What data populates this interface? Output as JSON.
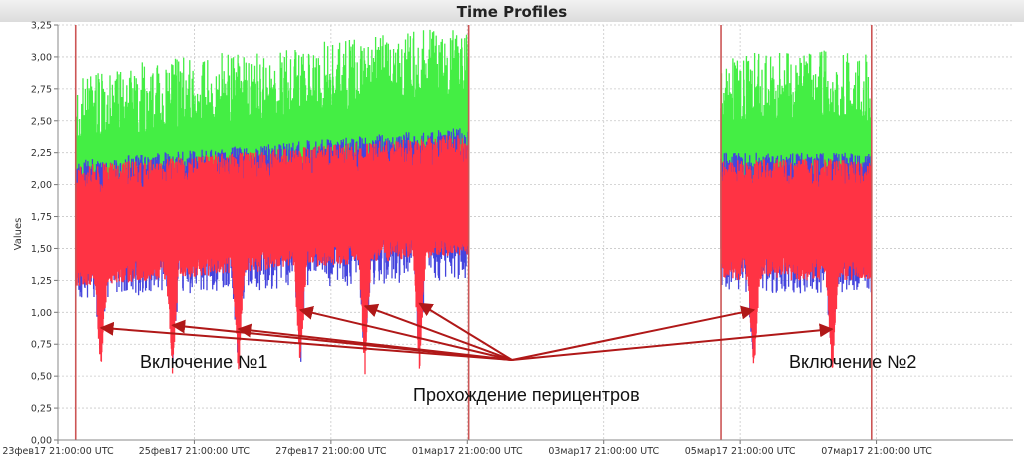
{
  "header": {
    "title": "Time Profiles"
  },
  "chart_data": {
    "type": "line",
    "title": "Time Profiles",
    "xlabel": "",
    "ylabel": "Values",
    "ylim": [
      0,
      3.25
    ],
    "y_ticks": [
      "0,00",
      "0,25",
      "0,50",
      "0,75",
      "1,00",
      "1,25",
      "1,50",
      "1,75",
      "2,00",
      "2,25",
      "2,50",
      "2,75",
      "3,00",
      "3,25"
    ],
    "x_ticks": [
      "23фев17 21:00:00 UTC",
      "25фев17 21:00:00 UTC",
      "27фев17 21:00:00 UTC",
      "01мар17 21:00:00 UTC",
      "03мар17 21:00:00 UTC",
      "05мар17 21:00:00 UTC",
      "07мар17 21:00:00 UTC"
    ],
    "grid": true,
    "series_colors": {
      "upper": "#44ee44",
      "lower": "#4444dd",
      "middle": "#ff3344",
      "marker": "#cc5555"
    },
    "segments": [
      {
        "start_days": 0.27,
        "end_days": 6.02,
        "upper_mean": [
          2.25,
          2.6
        ],
        "middle_mean": [
          1.7,
          1.95
        ],
        "lower_mean": [
          1.5,
          1.65
        ]
      },
      {
        "start_days": 9.72,
        "end_days": 11.93,
        "upper_mean": [
          2.4,
          2.4
        ],
        "middle_mean": [
          1.75,
          1.75
        ],
        "lower_mean": [
          1.55,
          1.55
        ]
      }
    ],
    "dips": [
      {
        "day": 0.63,
        "value": 0.91
      },
      {
        "day": 1.68,
        "value": 0.93
      },
      {
        "day": 2.65,
        "value": 0.9
      },
      {
        "day": 3.55,
        "value": 1.05
      },
      {
        "day": 4.5,
        "value": 1.08
      },
      {
        "day": 5.3,
        "value": 1.1
      },
      {
        "day": 10.2,
        "value": 1.05
      },
      {
        "day": 11.35,
        "value": 0.9
      }
    ],
    "vertical_markers_days": [
      0.26,
      6.02,
      9.72,
      11.93
    ],
    "annotations": {
      "inclusion1": "Включение №1",
      "inclusion2": "Включение №2",
      "pericenters": "Прохождение перицентров"
    }
  }
}
